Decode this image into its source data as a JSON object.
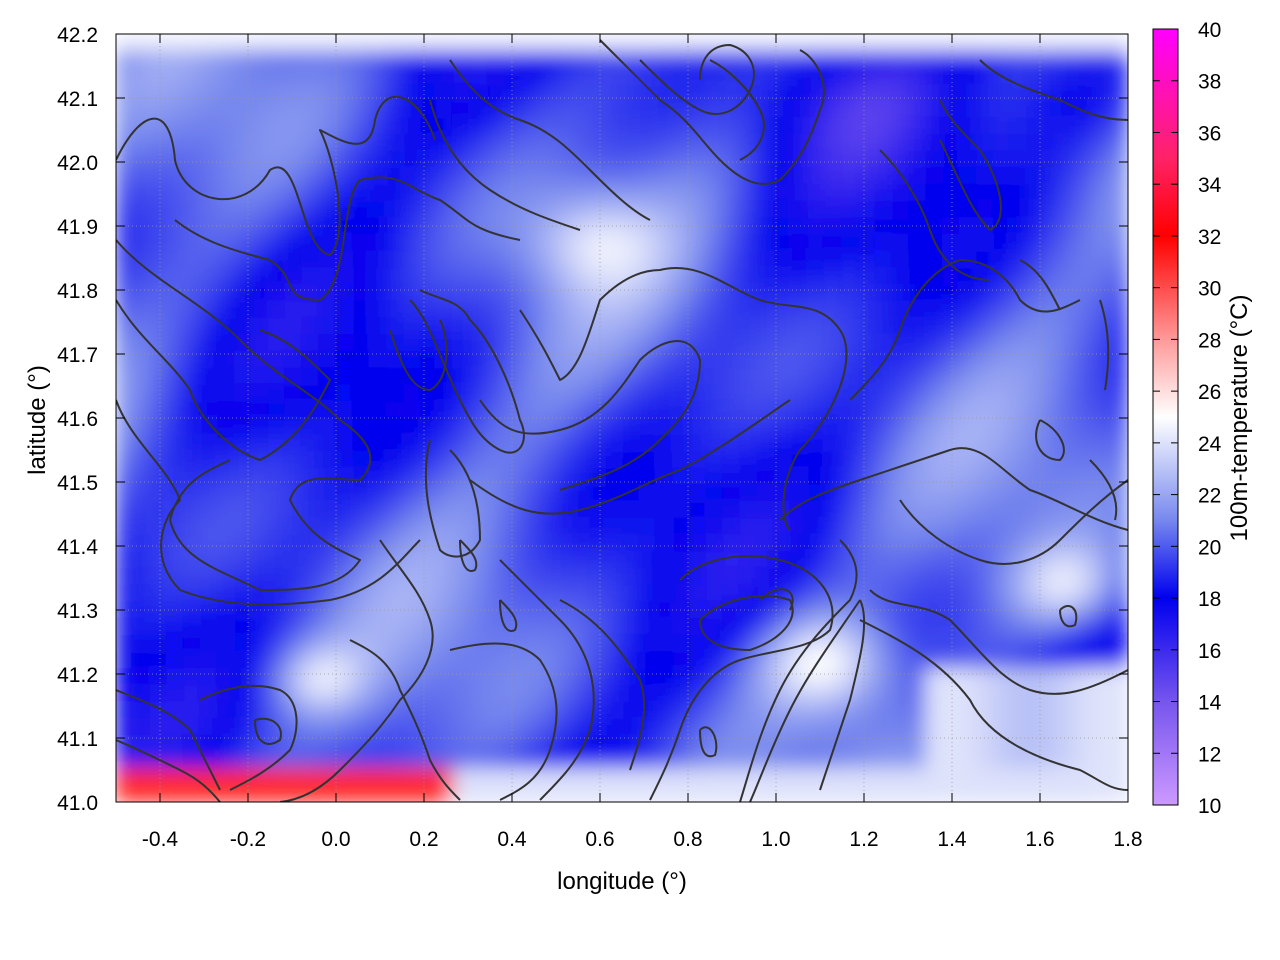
{
  "chart_data": {
    "type": "heatmap",
    "xlabel": "longitude (°)",
    "ylabel": "latitude (°)",
    "colorbar_label": "100m-temperature (°C)",
    "xlim": [
      -0.5,
      1.8
    ],
    "ylim": [
      41.0,
      42.2
    ],
    "x_ticks": [
      -0.4,
      -0.2,
      0.0,
      0.2,
      0.4,
      0.6,
      0.8,
      1.0,
      1.2,
      1.4,
      1.6,
      1.8
    ],
    "x_tick_labels": [
      "-0.4",
      "-0.2",
      "0.0",
      "0.2",
      "0.4",
      "0.6",
      "0.8",
      "1.0",
      "1.2",
      "1.4",
      "1.6",
      "1.8"
    ],
    "y_ticks": [
      41.0,
      41.1,
      41.2,
      41.3,
      41.4,
      41.5,
      41.6,
      41.7,
      41.8,
      41.9,
      42.0,
      42.1,
      42.2
    ],
    "y_tick_labels": [
      "41.0",
      "41.1",
      "41.2",
      "41.3",
      "41.4",
      "41.5",
      "41.6",
      "41.7",
      "41.8",
      "41.9",
      "42.0",
      "42.1",
      "42.2"
    ],
    "colorbar_range": [
      10,
      40
    ],
    "colorbar_ticks": [
      10,
      12,
      14,
      16,
      18,
      20,
      22,
      24,
      26,
      28,
      30,
      32,
      34,
      36,
      38,
      40
    ],
    "colorbar_tick_labels": [
      "10",
      "12",
      "14",
      "16",
      "18",
      "20",
      "22",
      "24",
      "26",
      "28",
      "30",
      "32",
      "34",
      "36",
      "38",
      "40"
    ],
    "colormap": [
      {
        "value": 10,
        "color": "#cc99ff"
      },
      {
        "value": 14,
        "color": "#7755ee"
      },
      {
        "value": 18,
        "color": "#0000ee"
      },
      {
        "value": 21,
        "color": "#7788ee"
      },
      {
        "value": 25,
        "color": "#ffffff"
      },
      {
        "value": 28,
        "color": "#ff9999"
      },
      {
        "value": 32,
        "color": "#ff0000"
      },
      {
        "value": 35,
        "color": "#ff2266"
      },
      {
        "value": 40,
        "color": "#ff00ff"
      }
    ],
    "grid": true,
    "grid_style": "dotted",
    "contours": true,
    "contour_color": "#333333"
  }
}
